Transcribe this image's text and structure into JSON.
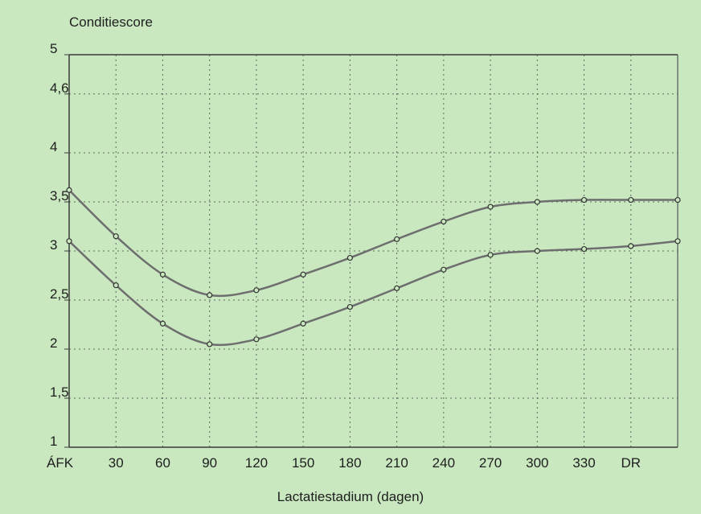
{
  "chart_data": {
    "type": "line",
    "title": "",
    "ylabel": "Conditiescore",
    "xlabel": "Lactatiestadium (dagen)",
    "ylim": [
      1,
      5
    ],
    "yticks": [
      {
        "value": 5,
        "label": "5"
      },
      {
        "value": 4.6,
        "label": "4,6"
      },
      {
        "value": 4,
        "label": "4"
      },
      {
        "value": 3.5,
        "label": "3,5"
      },
      {
        "value": 3,
        "label": "3"
      },
      {
        "value": 2.5,
        "label": "2,5"
      },
      {
        "value": 2,
        "label": "2"
      },
      {
        "value": 1.5,
        "label": "1,5"
      },
      {
        "value": 1,
        "label": "1"
      }
    ],
    "categories": [
      "ÁFK",
      "30",
      "60",
      "90",
      "120",
      "150",
      "180",
      "210",
      "240",
      "270",
      "300",
      "330",
      "DR",
      ""
    ],
    "grid": true,
    "series": [
      {
        "values": [
          3.62,
          3.15,
          2.76,
          2.55,
          2.6,
          2.76,
          2.93,
          3.12,
          3.3,
          3.45,
          3.5,
          3.52,
          3.52,
          3.52
        ]
      },
      {
        "values": [
          3.1,
          2.65,
          2.26,
          2.05,
          2.1,
          2.26,
          2.43,
          2.62,
          2.81,
          2.96,
          3.0,
          3.02,
          3.05,
          3.1
        ]
      }
    ],
    "colors": {
      "background": "#c9e8c0",
      "line": "#6e6e6e",
      "grid": "#5a6a5a",
      "frame": "#3a3a3a"
    }
  }
}
